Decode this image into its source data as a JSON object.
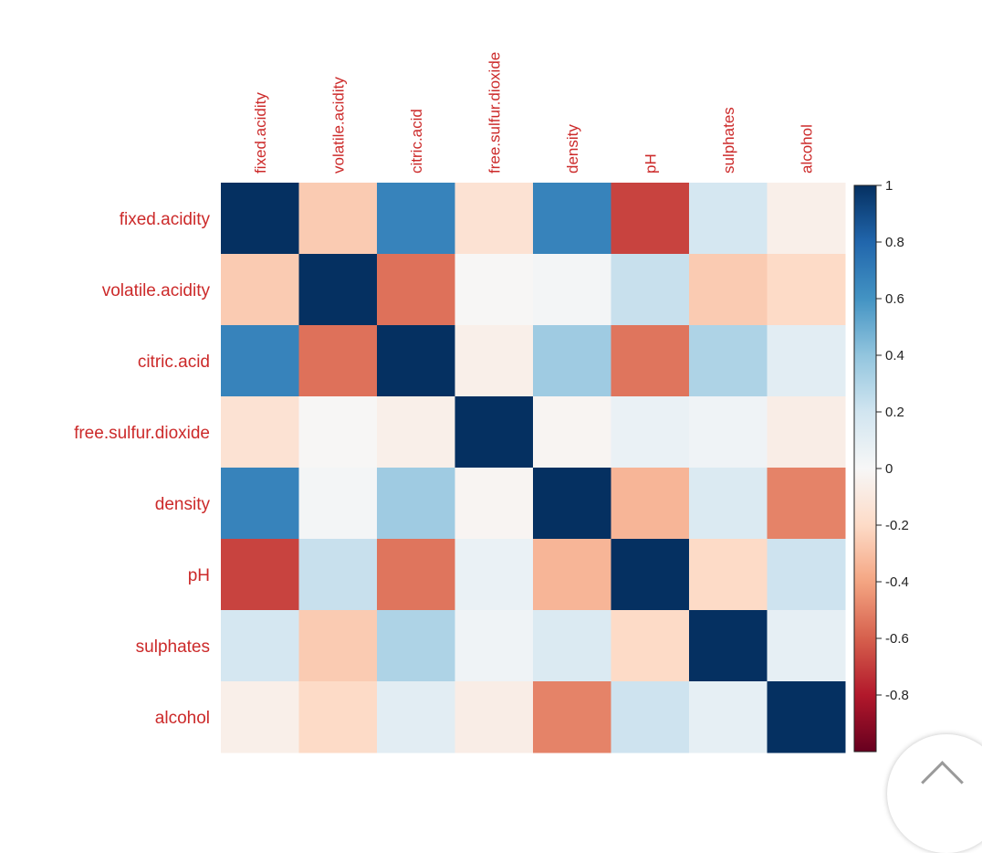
{
  "chart_data": {
    "type": "heatmap",
    "variables": [
      "fixed.acidity",
      "volatile.acidity",
      "citric.acid",
      "free.sulfur.dioxide",
      "density",
      "pH",
      "sulphates",
      "alcohol"
    ],
    "row_labels": [
      "fixed.acidity",
      "volatile.acidity",
      "citric.acid",
      "free.sulfur.dioxide",
      "density",
      "pH",
      "sulphates",
      "alcohol"
    ],
    "column_labels": [
      "fixed.acidity",
      "volatile.acidity",
      "citric.acid",
      "free.sulfur.dioxide",
      "density",
      "pH",
      "sulphates",
      "alcohol"
    ],
    "values": [
      [
        1.0,
        -0.26,
        0.67,
        -0.15,
        0.67,
        -0.68,
        0.18,
        -0.06
      ],
      [
        -0.26,
        1.0,
        -0.55,
        -0.01,
        0.02,
        0.23,
        -0.26,
        -0.2
      ],
      [
        0.67,
        -0.55,
        1.0,
        -0.06,
        0.36,
        -0.54,
        0.31,
        0.11
      ],
      [
        -0.15,
        -0.01,
        -0.06,
        1.0,
        -0.02,
        0.07,
        0.04,
        -0.07
      ],
      [
        0.67,
        0.02,
        0.36,
        -0.02,
        1.0,
        -0.34,
        0.15,
        -0.5
      ],
      [
        -0.68,
        0.23,
        -0.54,
        0.07,
        -0.34,
        1.0,
        -0.2,
        0.21
      ],
      [
        0.18,
        -0.26,
        0.31,
        0.04,
        0.15,
        -0.2,
        1.0,
        0.09
      ],
      [
        -0.06,
        -0.2,
        0.11,
        -0.07,
        -0.5,
        0.21,
        0.09,
        1.0
      ]
    ],
    "colorbar": {
      "range": [
        -1,
        1
      ],
      "ticks": [
        "1",
        "0.8",
        "0.6",
        "0.4",
        "0.2",
        "0",
        "-0.2",
        "-0.4",
        "-0.6",
        "-0.8"
      ],
      "tick_values": [
        1,
        0.8,
        0.6,
        0.4,
        0.2,
        0,
        -0.2,
        -0.4,
        -0.6,
        -0.8
      ],
      "colors_low_to_high": [
        "#67001f",
        "#b2182b",
        "#d6604d",
        "#f4a582",
        "#fddbc7",
        "#f7f7f7",
        "#d1e5f0",
        "#92c5de",
        "#4393c3",
        "#2166ac",
        "#053061"
      ]
    },
    "label_color": "#cc2a2a",
    "title": "",
    "xlabel": "",
    "ylabel": "",
    "grid": false,
    "legend": "right"
  },
  "scroll_top_icon": "chevron-up-icon"
}
